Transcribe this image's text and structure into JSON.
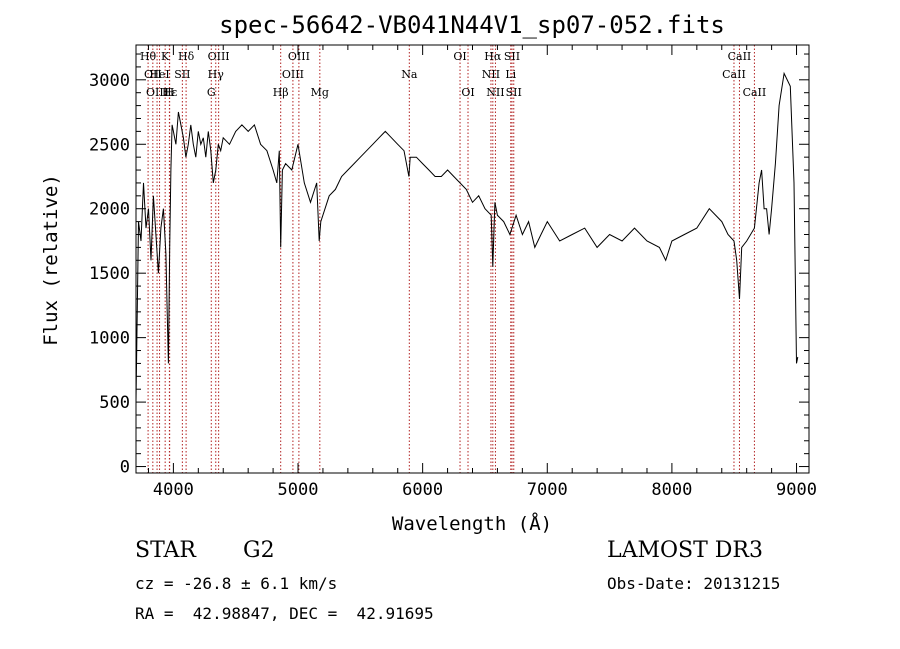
{
  "chart_data": {
    "type": "line",
    "title": "spec-56642-VB041N44V1_sp07-052.fits",
    "xlabel": "Wavelength (Å)",
    "ylabel": "Flux (relative)",
    "xlim": [
      3700,
      9100
    ],
    "ylim": [
      -50,
      3270
    ],
    "xticks": [
      4000,
      5000,
      6000,
      7000,
      8000,
      9000
    ],
    "yticks": [
      0,
      500,
      1000,
      1500,
      2000,
      2500,
      3000
    ],
    "line_color": "#000000",
    "marker_color": "#b22222",
    "series": [
      {
        "name": "flux",
        "x": [
          3700,
          3720,
          3740,
          3760,
          3780,
          3800,
          3820,
          3840,
          3860,
          3880,
          3900,
          3920,
          3940,
          3950,
          3960,
          3970,
          3980,
          3990,
          4000,
          4020,
          4040,
          4060,
          4080,
          4100,
          4120,
          4140,
          4160,
          4180,
          4200,
          4220,
          4240,
          4260,
          4280,
          4300,
          4320,
          4340,
          4360,
          4380,
          4400,
          4450,
          4500,
          4550,
          4600,
          4650,
          4700,
          4750,
          4800,
          4830,
          4850,
          4861,
          4875,
          4900,
          4950,
          5000,
          5050,
          5100,
          5150,
          5170,
          5183,
          5200,
          5250,
          5300,
          5350,
          5400,
          5450,
          5500,
          5550,
          5600,
          5650,
          5700,
          5750,
          5800,
          5850,
          5890,
          5900,
          5950,
          6000,
          6050,
          6100,
          6150,
          6200,
          6250,
          6300,
          6350,
          6400,
          6450,
          6500,
          6550,
          6563,
          6580,
          6600,
          6650,
          6700,
          6750,
          6800,
          6850,
          6900,
          6950,
          7000,
          7100,
          7200,
          7300,
          7400,
          7500,
          7600,
          7700,
          7800,
          7900,
          7950,
          8000,
          8100,
          8200,
          8300,
          8400,
          8450,
          8498,
          8520,
          8542,
          8560,
          8600,
          8662,
          8700,
          8720,
          8740,
          8760,
          8780,
          8800,
          8830,
          8860,
          8900,
          8950,
          8980,
          9000,
          9010
        ],
        "values": [
          500,
          1900,
          1750,
          2200,
          1850,
          2000,
          1600,
          2100,
          1800,
          1500,
          1850,
          2000,
          1650,
          1200,
          800,
          1700,
          2300,
          2650,
          2600,
          2500,
          2750,
          2650,
          2550,
          2400,
          2500,
          2650,
          2500,
          2400,
          2600,
          2500,
          2550,
          2400,
          2600,
          2450,
          2200,
          2300,
          2500,
          2450,
          2550,
          2500,
          2600,
          2650,
          2600,
          2650,
          2500,
          2450,
          2300,
          2200,
          2450,
          1700,
          2300,
          2350,
          2300,
          2500,
          2200,
          2050,
          2200,
          1750,
          1900,
          1950,
          2100,
          2150,
          2250,
          2300,
          2350,
          2400,
          2450,
          2500,
          2550,
          2600,
          2550,
          2500,
          2450,
          2250,
          2400,
          2400,
          2350,
          2300,
          2250,
          2250,
          2300,
          2250,
          2200,
          2150,
          2050,
          2100,
          2000,
          1950,
          1550,
          2050,
          1950,
          1900,
          1800,
          1950,
          1800,
          1900,
          1700,
          1800,
          1900,
          1750,
          1800,
          1850,
          1700,
          1800,
          1750,
          1850,
          1750,
          1700,
          1600,
          1750,
          1800,
          1850,
          2000,
          1900,
          1800,
          1750,
          1600,
          1300,
          1700,
          1750,
          1850,
          2200,
          2300,
          2000,
          2000,
          1800,
          2000,
          2350,
          2800,
          3050,
          2950,
          2200,
          800,
          850
        ]
      }
    ],
    "annotations": [
      {
        "wave": 3797,
        "label": "Hθ",
        "row": 0
      },
      {
        "wave": 3835,
        "label": "OII",
        "row": 1
      },
      {
        "wave": 3869,
        "label": "OIII",
        "row": 2
      },
      {
        "wave": 3889,
        "label": "HeI",
        "row": 1
      },
      {
        "wave": 3934,
        "label": "K",
        "row": 0
      },
      {
        "wave": 3970,
        "label": "Hε",
        "row": 2
      },
      {
        "wave": 3968,
        "label": "H",
        "row": 2
      },
      {
        "wave": 4072,
        "label": "SII",
        "row": 1
      },
      {
        "wave": 4102,
        "label": "Hδ",
        "row": 0
      },
      {
        "wave": 4304,
        "label": "G",
        "row": 2
      },
      {
        "wave": 4340,
        "label": "Hγ",
        "row": 1
      },
      {
        "wave": 4363,
        "label": "OIII",
        "row": 0
      },
      {
        "wave": 4861,
        "label": "Hβ",
        "row": 2
      },
      {
        "wave": 4959,
        "label": "OIII",
        "row": 1
      },
      {
        "wave": 5007,
        "label": "OIII",
        "row": 0
      },
      {
        "wave": 5175,
        "label": "Mg",
        "row": 2
      },
      {
        "wave": 5893,
        "label": "Na",
        "row": 1
      },
      {
        "wave": 6300,
        "label": "OI",
        "row": 0
      },
      {
        "wave": 6364,
        "label": "OI",
        "row": 2
      },
      {
        "wave": 6548,
        "label": "NII",
        "row": 1
      },
      {
        "wave": 6563,
        "label": "Hα",
        "row": 0
      },
      {
        "wave": 6584,
        "label": "NII",
        "row": 2
      },
      {
        "wave": 6707,
        "label": "Li",
        "row": 1
      },
      {
        "wave": 6717,
        "label": "SII",
        "row": 0
      },
      {
        "wave": 6731,
        "label": "SII",
        "row": 2
      },
      {
        "wave": 8498,
        "label": "CaII",
        "row": 1
      },
      {
        "wave": 8542,
        "label": "CaII",
        "row": 0
      },
      {
        "wave": 8662,
        "label": "CaII",
        "row": 2
      }
    ]
  },
  "info": {
    "class_label": "STAR",
    "subclass": "G2",
    "survey": "LAMOST DR3",
    "cz_line": "cz = -26.8 ± 6.1 km/s",
    "obs_date": "Obs-Date: 20131215",
    "coords": "RA =  42.98847, DEC =  42.91695"
  }
}
